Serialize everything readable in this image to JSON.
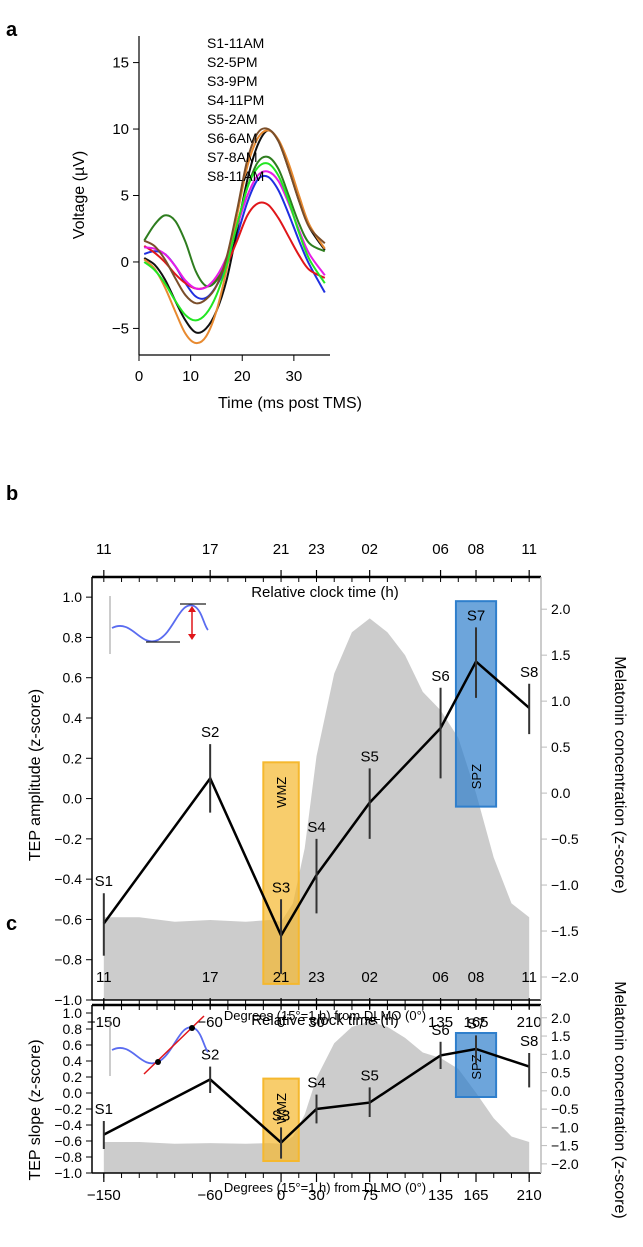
{
  "panel_labels": [
    "a",
    "b",
    "c"
  ],
  "chart_data": [
    {
      "type": "line",
      "panel": "a",
      "xlabel": "Time (ms post TMS)",
      "ylabel": "Voltage (µV)",
      "xlim": [
        0,
        37
      ],
      "ylim": [
        -7,
        17
      ],
      "xticks": [
        0,
        10,
        20,
        30
      ],
      "yticks": [
        -5,
        0,
        5,
        10,
        15
      ],
      "legend_position": "top-left",
      "x": [
        1,
        3,
        5,
        7,
        9,
        11,
        13,
        15,
        17,
        19,
        21,
        23,
        25,
        27,
        29,
        31,
        33,
        36
      ],
      "series": [
        {
          "name": "S1-11AM",
          "color": "#1f2fe0",
          "values": [
            0.6,
            0.8,
            0.6,
            -0.3,
            -1.6,
            -2.6,
            -2.7,
            -1.8,
            -0.2,
            2.0,
            4.5,
            6.2,
            6.4,
            5.4,
            3.6,
            1.6,
            -0.2,
            -2.3
          ]
        },
        {
          "name": "S2-5PM",
          "color": "#111111",
          "values": [
            0.3,
            -0.2,
            -1.3,
            -2.9,
            -4.4,
            -5.3,
            -5.0,
            -3.7,
            -1.3,
            2.4,
            6.2,
            8.8,
            9.9,
            9.1,
            7.0,
            4.6,
            2.6,
            0.9
          ]
        },
        {
          "name": "S3-9PM",
          "color": "#e0161a",
          "values": [
            1.2,
            0.7,
            0.0,
            -0.9,
            -1.6,
            -2.0,
            -1.9,
            -1.3,
            -0.2,
            1.6,
            3.5,
            4.4,
            4.3,
            3.3,
            1.9,
            0.5,
            -0.6,
            -1.2
          ]
        },
        {
          "name": "S4-11PM",
          "color": "#2e7d1f",
          "values": [
            1.6,
            2.8,
            3.5,
            3.1,
            1.5,
            -0.7,
            -1.8,
            -1.4,
            0.2,
            2.8,
            5.6,
            7.5,
            7.9,
            7.0,
            5.0,
            2.9,
            1.4,
            0.8
          ]
        },
        {
          "name": "S5-2AM",
          "color": "#e61de6",
          "values": [
            1.1,
            1.0,
            0.6,
            -0.3,
            -1.4,
            -2.0,
            -1.9,
            -1.1,
            0.4,
            2.7,
            5.0,
            6.5,
            6.8,
            6.1,
            4.4,
            2.4,
            0.6,
            -1.0
          ]
        },
        {
          "name": "S6-6AM",
          "color": "#e88a30",
          "values": [
            0.2,
            -0.5,
            -1.9,
            -3.7,
            -5.4,
            -6.1,
            -5.6,
            -3.7,
            -0.5,
            3.5,
            7.2,
            9.3,
            9.9,
            9.2,
            7.4,
            5.0,
            2.8,
            1.0
          ]
        },
        {
          "name": "S7-8AM",
          "color": "#7a4e2a",
          "values": [
            1.6,
            1.2,
            0.2,
            -1.2,
            -2.5,
            -3.1,
            -2.8,
            -1.8,
            0.4,
            3.9,
            7.7,
            9.7,
            10.0,
            9.1,
            7.0,
            4.6,
            2.6,
            1.4
          ]
        },
        {
          "name": "S8-11AM",
          "color": "#22e622",
          "values": [
            0.0,
            -0.6,
            -1.6,
            -2.9,
            -4.0,
            -4.4,
            -3.9,
            -2.5,
            -0.2,
            2.8,
            5.6,
            7.1,
            7.4,
            6.5,
            4.6,
            2.2,
            0.2,
            -1.6
          ]
        }
      ]
    },
    {
      "type": "line",
      "panel": "b",
      "ylabel": "TEP amplitude (z-score)",
      "y2label": "Melatonin concentration (z-score)",
      "top_axis_title": "Relative clock time (h)",
      "bottom_axis_title": "Degrees (15°=1 h) from DLMO (0°)",
      "xlim": [
        -160,
        220
      ],
      "ylim": [
        -1.0,
        1.1
      ],
      "y2lim": [
        -2.25,
        2.35
      ],
      "xticks": [
        -150,
        -60,
        0,
        30,
        75,
        135,
        165,
        210
      ],
      "xtick_labels": [
        "−150",
        "−60",
        "0",
        "30",
        "75",
        "135",
        "165",
        "210"
      ],
      "top_ticks": [
        -150,
        -60,
        0,
        30,
        75,
        135,
        165,
        210
      ],
      "top_tick_labels": [
        "11",
        "17",
        "21",
        "23",
        "02",
        "06",
        "08",
        "11"
      ],
      "yticks": [
        -1.0,
        -0.8,
        -0.6,
        -0.4,
        -0.2,
        0.0,
        0.2,
        0.4,
        0.6,
        0.8,
        1.0
      ],
      "ytick_labels": [
        "−1.0",
        "−0.8",
        "−0.6",
        "−0.4",
        "−0.2",
        "0.0",
        "0.2",
        "0.4",
        "0.6",
        "0.8",
        "1.0"
      ],
      "y2ticks": [
        -2.0,
        -1.5,
        -1.0,
        -0.5,
        0.0,
        0.5,
        1.0,
        1.5,
        2.0
      ],
      "y2tick_labels": [
        "−2.0",
        "−1.5",
        "−1.0",
        "−0.5",
        "0.0",
        "0.5",
        "1.0",
        "1.5",
        "2.0"
      ],
      "series": [
        {
          "color": "#000000",
          "x": [
            -150,
            -60,
            0,
            30,
            75,
            135,
            165,
            210
          ],
          "values": [
            -0.62,
            0.1,
            -0.68,
            -0.38,
            -0.02,
            0.35,
            0.68,
            0.45
          ],
          "err_low": [
            -0.78,
            -0.07,
            -0.87,
            -0.57,
            -0.2,
            0.1,
            0.5,
            0.32
          ],
          "err_high": [
            -0.47,
            0.27,
            -0.5,
            -0.2,
            0.15,
            0.55,
            0.85,
            0.57
          ],
          "point_labels": [
            "S1",
            "S2",
            "S3",
            "S4",
            "S5",
            "S6",
            "S7",
            "S8"
          ]
        },
        {
          "type": "area",
          "axis": "right",
          "color": "#cccccc",
          "x": [
            -150,
            -120,
            -90,
            -60,
            -30,
            -10,
            0,
            10,
            20,
            30,
            45,
            60,
            75,
            90,
            105,
            120,
            135,
            150,
            165,
            180,
            195,
            210
          ],
          "values": [
            -1.35,
            -1.35,
            -1.4,
            -1.38,
            -1.4,
            -1.38,
            -1.4,
            -1.2,
            -0.6,
            0.4,
            1.3,
            1.75,
            1.9,
            1.75,
            1.5,
            1.1,
            0.9,
            0.6,
            0.0,
            -0.7,
            -1.2,
            -1.35
          ]
        }
      ],
      "zones": [
        {
          "label": "WMZ",
          "color": "#f5b82e",
          "x_start": -15,
          "x_end": 15,
          "y_start": -0.92,
          "y_end": 0.18
        },
        {
          "label": "SPZ",
          "color": "#2f7fcc",
          "x_start": 148,
          "x_end": 182,
          "y_start": -0.04,
          "y_end": 0.98
        }
      ]
    },
    {
      "type": "line",
      "panel": "c",
      "ylabel": "TEP slope (z-score)",
      "y2label": "Melatonin concentration (z-score)",
      "top_axis_title": "Relative clock time (h)",
      "bottom_axis_title": "Degrees (15°=1 h) from DLMO (0°)",
      "xlim": [
        -160,
        220
      ],
      "ylim": [
        -1.0,
        1.1
      ],
      "y2lim": [
        -2.25,
        2.35
      ],
      "xticks": [
        -150,
        -60,
        0,
        30,
        75,
        135,
        165,
        210
      ],
      "xtick_labels": [
        "−150",
        "−60",
        "0",
        "30",
        "75",
        "135",
        "165",
        "210"
      ],
      "top_ticks": [
        -150,
        -60,
        0,
        30,
        75,
        135,
        165,
        210
      ],
      "top_tick_labels": [
        "11",
        "17",
        "21",
        "23",
        "02",
        "06",
        "08",
        "11"
      ],
      "yticks": [
        -1.0,
        -0.8,
        -0.6,
        -0.4,
        -0.2,
        0.0,
        0.2,
        0.4,
        0.6,
        0.8,
        1.0
      ],
      "ytick_labels": [
        "−1.0",
        "−0.8",
        "−0.6",
        "−0.4",
        "−0.2",
        "0.0",
        "0.2",
        "0.4",
        "0.6",
        "0.8",
        "1.0"
      ],
      "y2ticks": [
        -2.0,
        -1.5,
        -1.0,
        -0.5,
        0.0,
        0.5,
        1.0,
        1.5,
        2.0
      ],
      "y2tick_labels": [
        "−2.0",
        "−1.5",
        "−1.0",
        "−0.5",
        "0.0",
        "0.5",
        "1.0",
        "1.5",
        "2.0"
      ],
      "series": [
        {
          "color": "#000000",
          "x": [
            -150,
            -60,
            0,
            30,
            75,
            135,
            165,
            210
          ],
          "values": [
            -0.52,
            0.17,
            -0.62,
            -0.2,
            -0.12,
            0.47,
            0.55,
            0.33
          ],
          "err_low": [
            -0.7,
            0.0,
            -0.82,
            -0.38,
            -0.3,
            0.3,
            0.37,
            0.07
          ],
          "err_high": [
            -0.35,
            0.33,
            -0.43,
            -0.02,
            0.07,
            0.64,
            0.72,
            0.5
          ],
          "point_labels": [
            "S1",
            "S2",
            "S3",
            "S4",
            "S5",
            "S6",
            "S7",
            "S8"
          ]
        },
        {
          "type": "area",
          "axis": "right",
          "color": "#cccccc",
          "x": [
            -150,
            -120,
            -90,
            -60,
            -30,
            -10,
            0,
            10,
            20,
            30,
            45,
            60,
            75,
            90,
            105,
            120,
            135,
            150,
            165,
            180,
            195,
            210
          ],
          "values": [
            -1.4,
            -1.4,
            -1.45,
            -1.43,
            -1.45,
            -1.43,
            -1.45,
            -1.25,
            -0.65,
            0.35,
            1.3,
            1.75,
            1.9,
            1.75,
            1.45,
            1.05,
            0.9,
            0.6,
            -0.05,
            -0.75,
            -1.25,
            -1.4
          ]
        }
      ],
      "zones": [
        {
          "label": "WMZ",
          "color": "#f5b82e",
          "x_start": -15,
          "x_end": 15,
          "y_start": -0.85,
          "y_end": 0.18
        },
        {
          "label": "SPZ",
          "color": "#2f7fcc",
          "x_start": 148,
          "x_end": 182,
          "y_start": -0.05,
          "y_end": 0.75
        }
      ]
    }
  ]
}
